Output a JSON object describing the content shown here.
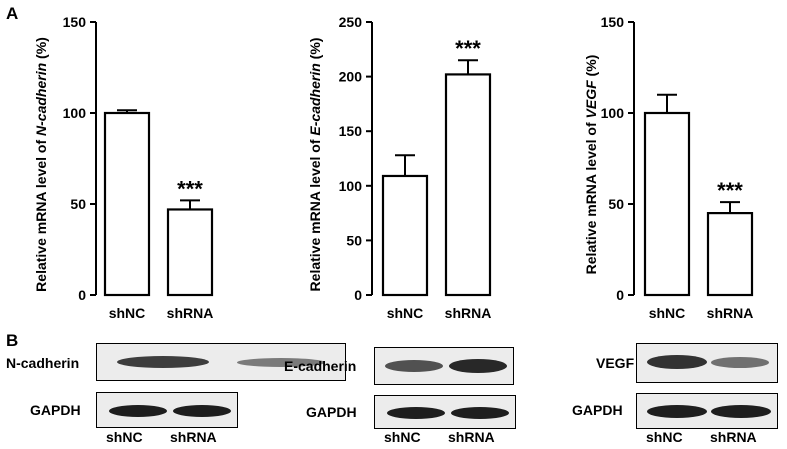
{
  "panels": {
    "a_label": "A",
    "b_label": "B"
  },
  "chart_data": [
    {
      "type": "bar",
      "categories": [
        "shNC",
        "shRNA"
      ],
      "values": [
        100,
        47
      ],
      "errors": [
        1.5,
        5
      ],
      "annotations": [
        "",
        "***"
      ],
      "ylabel_prefix": "Relative mRNA level of ",
      "ylabel_gene": "N-cadherin",
      "ylabel_suffix": " (%)",
      "ylim": [
        0,
        150
      ],
      "yticks": [
        "0",
        "50",
        "100",
        "150"
      ],
      "ytick_values": [
        0,
        50,
        100,
        150
      ]
    },
    {
      "type": "bar",
      "categories": [
        "shNC",
        "shRNA"
      ],
      "values": [
        109,
        202
      ],
      "errors": [
        19,
        13
      ],
      "annotations": [
        "",
        "***"
      ],
      "ylabel_prefix": "Relative mRNA level of ",
      "ylabel_gene": "E-cadherin",
      "ylabel_suffix": " (%)",
      "ylim": [
        0,
        250
      ],
      "yticks": [
        "0",
        "50",
        "100",
        "150",
        "200",
        "250"
      ],
      "ytick_values": [
        0,
        50,
        100,
        150,
        200,
        250
      ]
    },
    {
      "type": "bar",
      "categories": [
        "shNC",
        "shRNA"
      ],
      "values": [
        100,
        45
      ],
      "errors": [
        10,
        6
      ],
      "annotations": [
        "",
        "***"
      ],
      "ylabel_prefix": "Relative mRNA level of ",
      "ylabel_gene": "VEGF",
      "ylabel_suffix": " (%)",
      "ylim": [
        0,
        150
      ],
      "yticks": [
        "0",
        "50",
        "100",
        "150"
      ],
      "ytick_values": [
        0,
        50,
        100,
        150
      ]
    }
  ],
  "blots": [
    {
      "protein": "N-cadherin",
      "loading": "GAPDH",
      "lanes": [
        "shNC",
        "shRNA"
      ],
      "band_intensity": [
        0.85,
        0.55
      ]
    },
    {
      "protein": "E-cadherin",
      "loading": "GAPDH",
      "lanes": [
        "shNC",
        "shRNA"
      ],
      "band_intensity": [
        0.75,
        0.95
      ]
    },
    {
      "protein": "VEGF",
      "loading": "GAPDH",
      "lanes": [
        "shNC",
        "shRNA"
      ],
      "band_intensity": [
        0.9,
        0.6
      ]
    }
  ]
}
